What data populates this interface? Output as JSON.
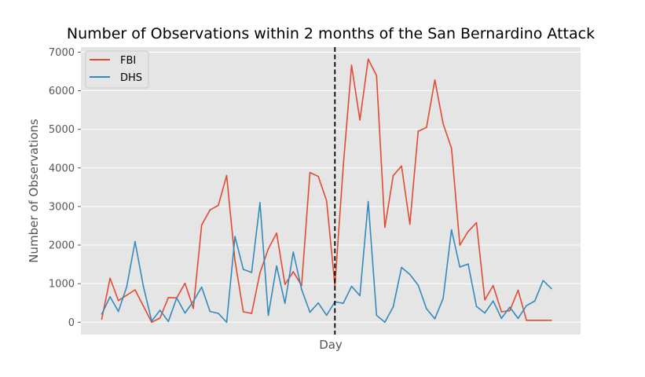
{
  "chart_data": {
    "type": "line",
    "title": "Number of Observations within 2 months of the San Bernardino Attack",
    "xlabel": "Day",
    "ylabel": "Number of Observations",
    "ylim": [
      -320,
      7130
    ],
    "xlim": [
      -2.5,
      57.5
    ],
    "yticks": [
      "0",
      "1000",
      "2000",
      "3000",
      "4000",
      "5000",
      "6000",
      "7000"
    ],
    "grid": true,
    "legend_position": "top-left",
    "event_marker": {
      "x": 28,
      "style": "dashed",
      "color": "#000000"
    },
    "series": [
      {
        "name": "FBI",
        "color": "#E24A33",
        "values": [
          80,
          1140,
          560,
          700,
          840,
          420,
          0,
          110,
          640,
          630,
          1010,
          360,
          2520,
          2910,
          3030,
          3800,
          1600,
          270,
          230,
          1280,
          1900,
          2310,
          980,
          1310,
          950,
          3880,
          3780,
          3150,
          950,
          4040,
          6660,
          5240,
          6820,
          6390,
          2460,
          3800,
          4050,
          2540,
          4950,
          5050,
          6280,
          5140,
          4510,
          2000,
          2350,
          2580,
          580,
          950,
          270,
          300,
          830,
          50,
          50,
          50,
          50
        ]
      },
      {
        "name": "DHS",
        "color": "#348ABD",
        "values": [
          210,
          660,
          280,
          920,
          2090,
          930,
          30,
          310,
          20,
          630,
          240,
          540,
          910,
          280,
          230,
          0,
          2220,
          1370,
          1290,
          3100,
          180,
          1460,
          490,
          1820,
          850,
          260,
          500,
          180,
          530,
          490,
          930,
          690,
          3130,
          180,
          0,
          400,
          1420,
          1240,
          960,
          350,
          90,
          620,
          2400,
          1430,
          1510,
          410,
          240,
          550,
          100,
          390,
          100,
          430,
          550,
          1080,
          870
        ]
      }
    ]
  }
}
